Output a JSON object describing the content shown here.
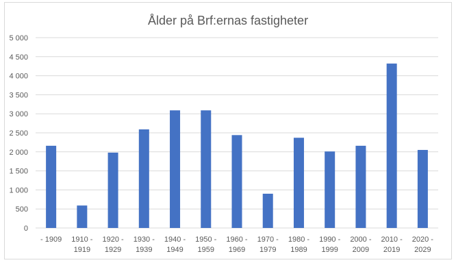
{
  "chart_data": {
    "type": "bar",
    "title": "Ålder på Brf:ernas fastigheter",
    "categories": [
      [
        "- 1909"
      ],
      [
        "1910 -",
        "1919"
      ],
      [
        "1920 -",
        "1929"
      ],
      [
        "1930 -",
        "1939"
      ],
      [
        "1940 -",
        "1949"
      ],
      [
        "1950 -",
        "1959"
      ],
      [
        "1960 -",
        "1969"
      ],
      [
        "1970 -",
        "1979"
      ],
      [
        "1980 -",
        "1989"
      ],
      [
        "1990 -",
        "1999"
      ],
      [
        "2000 -",
        "2009"
      ],
      [
        "2010 -",
        "2019"
      ],
      [
        "2020 -",
        "2029"
      ]
    ],
    "values": [
      2160,
      590,
      1980,
      2590,
      3090,
      3090,
      2440,
      900,
      2370,
      2010,
      2160,
      4320,
      2050
    ],
    "ylim": [
      0,
      5000
    ],
    "yticks": [
      "0",
      "500",
      "1 000",
      "1 500",
      "2 000",
      "2 500",
      "3 000",
      "3 500",
      "4 000",
      "4 500",
      "5 000"
    ],
    "grid": true,
    "bar_color": "#4472c4",
    "grid_color": "#d9d9d9",
    "text_color": "#595959"
  }
}
